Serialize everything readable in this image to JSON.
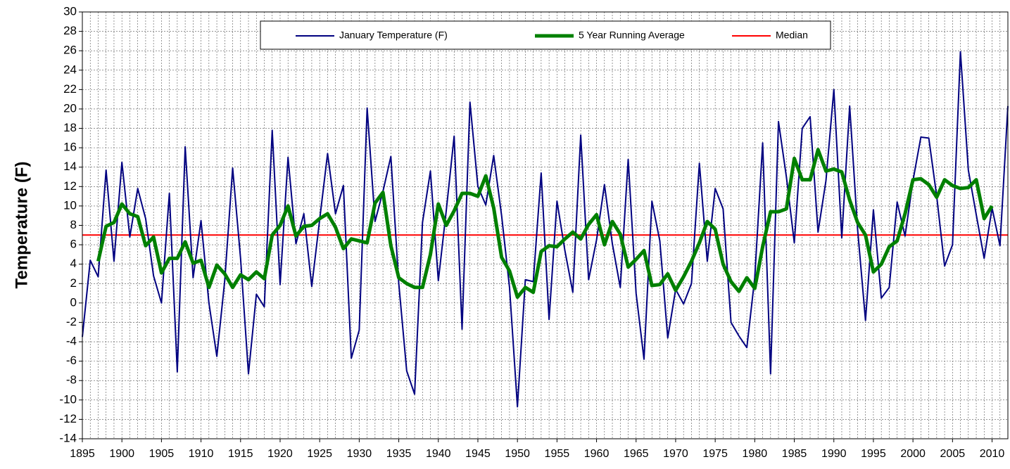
{
  "chart_data": {
    "type": "line",
    "y_label": "Temperature (F)",
    "x": [
      1895,
      1896,
      1897,
      1898,
      1899,
      1900,
      1901,
      1902,
      1903,
      1904,
      1905,
      1906,
      1907,
      1908,
      1909,
      1910,
      1911,
      1912,
      1913,
      1914,
      1915,
      1916,
      1917,
      1918,
      1919,
      1920,
      1921,
      1922,
      1923,
      1924,
      1925,
      1926,
      1927,
      1928,
      1929,
      1930,
      1931,
      1932,
      1933,
      1934,
      1935,
      1936,
      1937,
      1938,
      1939,
      1940,
      1941,
      1942,
      1943,
      1944,
      1945,
      1946,
      1947,
      1948,
      1949,
      1950,
      1951,
      1952,
      1953,
      1954,
      1955,
      1956,
      1957,
      1958,
      1959,
      1960,
      1961,
      1962,
      1963,
      1964,
      1965,
      1966,
      1967,
      1968,
      1969,
      1970,
      1971,
      1972,
      1973,
      1974,
      1975,
      1976,
      1977,
      1978,
      1979,
      1980,
      1981,
      1982,
      1983,
      1984,
      1985,
      1986,
      1987,
      1988,
      1989,
      1990,
      1991,
      1992,
      1993,
      1994,
      1995,
      1996,
      1997,
      1998,
      1999,
      2000,
      2001,
      2002,
      2003,
      2004,
      2005,
      2006,
      2007,
      2008,
      2009,
      2010,
      2011,
      2012
    ],
    "series": [
      {
        "name": "January Temperature (F)",
        "color": "#000080",
        "width": 2,
        "values": [
          -3.5,
          4.4,
          2.7,
          13.7,
          4.3,
          14.5,
          6.8,
          11.8,
          8.7,
          2.8,
          0.0,
          11.3,
          -7.1,
          16.1,
          2.6,
          8.5,
          0.0,
          -5.5,
          2.3,
          13.9,
          4.6,
          -7.3,
          0.9,
          -0.4,
          17.8,
          1.9,
          15.0,
          6.1,
          9.2,
          1.7,
          8.6,
          15.4,
          9.2,
          12.1,
          -5.7,
          -2.8,
          20.1,
          8.4,
          11.5,
          15.1,
          2.0,
          -7.0,
          -9.4,
          8.3,
          13.6,
          2.3,
          9.5,
          17.2,
          -2.7,
          20.7,
          12.0,
          10.1,
          15.2,
          9.0,
          1.6,
          -10.7,
          2.4,
          2.2,
          13.4,
          -1.7,
          10.5,
          5.4,
          1.1,
          17.3,
          2.4,
          6.5,
          12.2,
          6.1,
          1.6,
          14.8,
          1.0,
          -5.8,
          10.5,
          6.4,
          -3.6,
          1.4,
          -0.1,
          2.0,
          14.4,
          4.3,
          11.8,
          9.7,
          -2.0,
          -3.4,
          -4.6,
          2.6,
          16.5,
          -7.3,
          18.7,
          13.0,
          6.2,
          18.0,
          19.2,
          7.3,
          12.6,
          22.0,
          6.7,
          20.3,
          7.6,
          -1.8,
          9.6,
          0.5,
          1.6,
          10.4,
          6.9,
          12.6,
          17.1,
          17.0,
          11.0,
          3.8,
          6.0,
          25.9,
          13.7,
          9.1,
          4.6,
          9.8,
          5.9,
          20.3
        ]
      },
      {
        "name": "5 Year Running Average",
        "color": "#008000",
        "width": 5,
        "values": [
          null,
          null,
          4.3,
          7.9,
          8.3,
          10.2,
          9.2,
          8.9,
          5.9,
          6.8,
          3.1,
          4.6,
          4.6,
          6.3,
          4.1,
          4.4,
          1.6,
          3.9,
          3.0,
          1.6,
          2.9,
          2.4,
          3.2,
          2.5,
          7.0,
          8.0,
          10.0,
          6.9,
          7.9,
          8.0,
          8.7,
          9.2,
          7.8,
          5.6,
          6.6,
          6.4,
          6.2,
          10.3,
          11.4,
          5.9,
          2.6,
          2.0,
          1.6,
          1.6,
          5.0,
          10.2,
          8.0,
          9.5,
          11.3,
          11.3,
          11.0,
          13.1,
          9.8,
          4.7,
          3.3,
          0.6,
          1.6,
          1.1,
          5.3,
          5.9,
          5.8,
          6.6,
          7.3,
          6.6,
          8.1,
          9.1,
          6.0,
          8.4,
          7.1,
          3.7,
          4.5,
          5.4,
          1.8,
          1.9,
          3.0,
          1.3,
          2.7,
          4.3,
          6.2,
          8.4,
          7.6,
          4.0,
          2.2,
          1.2,
          2.6,
          1.5,
          5.8,
          9.4,
          9.4,
          9.7,
          14.9,
          12.7,
          12.7,
          15.8,
          13.6,
          13.8,
          13.5,
          10.6,
          8.3,
          7.0,
          3.2,
          4.0,
          5.8,
          6.4,
          9.2,
          12.7,
          12.8,
          12.2,
          10.9,
          12.7,
          12.1,
          11.8,
          11.9,
          12.7,
          8.7,
          10.0,
          null,
          null
        ]
      }
    ],
    "reference_line": {
      "name": "Median",
      "color": "#ff0000",
      "value": 7
    },
    "xlim": [
      1895,
      2012
    ],
    "xticks": [
      1895,
      1900,
      1905,
      1910,
      1915,
      1920,
      1925,
      1930,
      1935,
      1940,
      1945,
      1950,
      1955,
      1960,
      1965,
      1970,
      1975,
      1980,
      1985,
      1990,
      1995,
      2000,
      2005,
      2010
    ],
    "ylim": [
      -14,
      30
    ],
    "yticks": [
      -14,
      -12,
      -10,
      -8,
      -6,
      -4,
      -2,
      0,
      2,
      4,
      6,
      8,
      10,
      12,
      14,
      16,
      18,
      20,
      22,
      24,
      26,
      28,
      30
    ],
    "grid": true,
    "legend": "top"
  }
}
